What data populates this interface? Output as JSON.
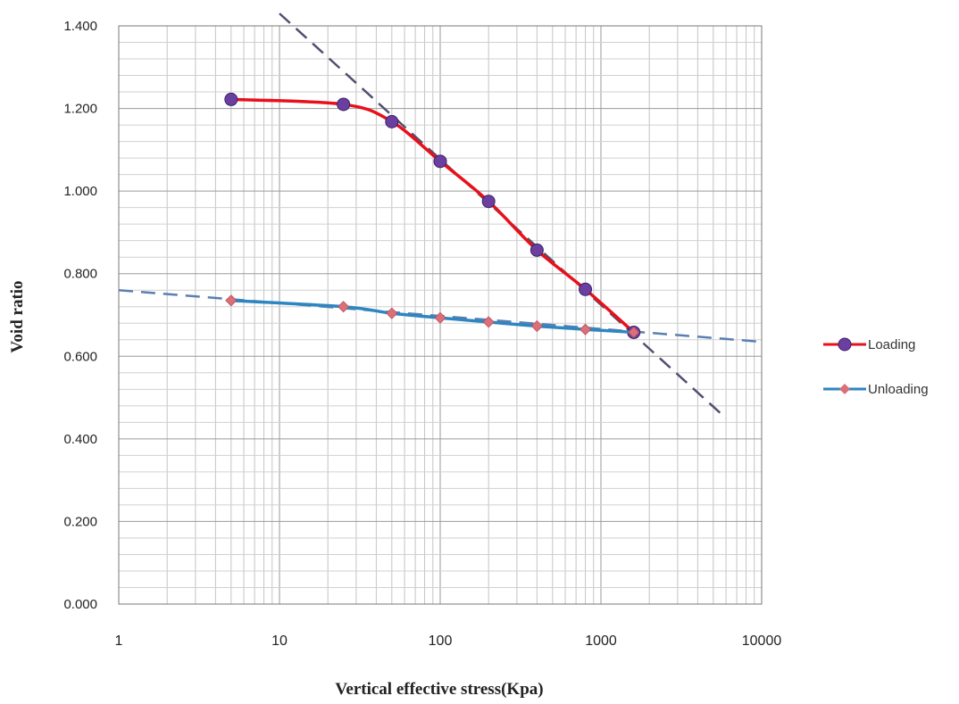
{
  "chart_data": {
    "type": "scatter",
    "title": "",
    "xlabel": "Vertical effective stress(Kpa)",
    "ylabel": "Void ratio",
    "x_scale": "log",
    "xlim": [
      1,
      10000
    ],
    "ylim": [
      0,
      1.4
    ],
    "x_ticks": [
      1,
      10,
      100,
      1000,
      10000
    ],
    "x_tick_labels": [
      "1",
      "10",
      "100",
      "1000",
      "10000"
    ],
    "y_ticks": [
      0,
      0.2,
      0.4,
      0.6,
      0.8,
      1.0,
      1.2,
      1.4
    ],
    "y_tick_labels": [
      "0.000",
      "0.200",
      "0.400",
      "0.600",
      "0.800",
      "1.000",
      "1.200",
      "1.400"
    ],
    "grid": true,
    "legend_position": "right",
    "series": [
      {
        "name": "Loading",
        "x": [
          5,
          25,
          50,
          100,
          200,
          400,
          800,
          1600
        ],
        "y": [
          1.222,
          1.21,
          1.168,
          1.072,
          0.975,
          0.857,
          0.762,
          0.658
        ],
        "color": "#e8101a",
        "marker_color": "#6b3fa0",
        "marker": "circle"
      },
      {
        "name": "Unloading",
        "x": [
          5,
          25,
          50,
          100,
          200,
          400,
          800,
          1600
        ],
        "y": [
          0.735,
          0.72,
          0.704,
          0.693,
          0.683,
          0.673,
          0.665,
          0.658
        ],
        "color": "#2e86c1",
        "marker_color": "#d9707a",
        "marker": "diamond"
      }
    ],
    "reference_lines": [
      {
        "style": "dashed",
        "color": "#505070",
        "x": [
          10,
          6000
        ],
        "y": [
          1.43,
          0.45
        ]
      },
      {
        "style": "dashed",
        "color": "#5a7fb0",
        "x": [
          1,
          10000
        ],
        "y": [
          0.76,
          0.635
        ]
      }
    ]
  }
}
